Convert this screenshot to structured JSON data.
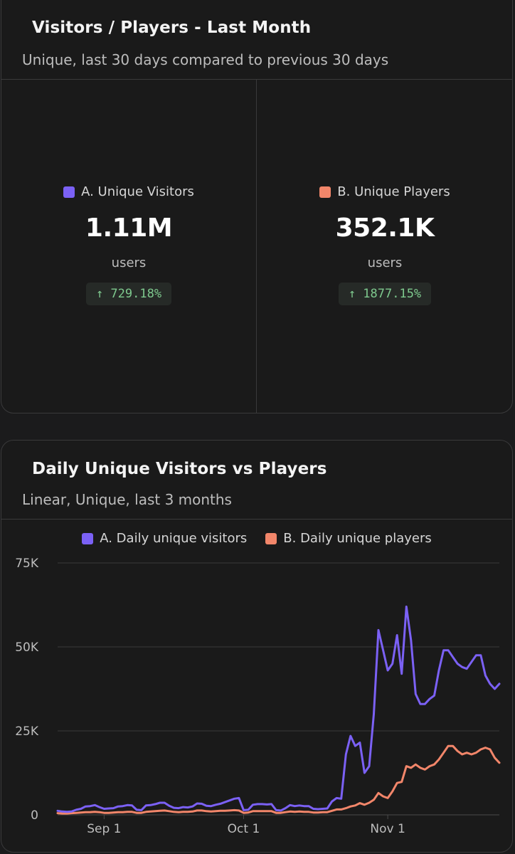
{
  "summary_card": {
    "title": "Visitors / Players - Last Month",
    "subtitle": "Unique, last 30 days compared to previous 30 days",
    "stats": [
      {
        "label": "A. Unique Visitors",
        "value": "1.11M",
        "unit": "users",
        "change": "↑ 729.18%",
        "color": "#7b61f5"
      },
      {
        "label": "B. Unique Players",
        "value": "352.1K",
        "unit": "users",
        "change": "↑ 1877.15%",
        "color": "#f2866a"
      }
    ],
    "change_color": "#7ec98e"
  },
  "chart_card": {
    "title": "Daily Unique Visitors vs Players",
    "subtitle": "Linear, Unique, last 3 months"
  },
  "chart_data": {
    "type": "line",
    "title": "Daily Unique Visitors vs Players",
    "subtitle": "Linear, Unique, last 3 months",
    "xlabel": "",
    "ylabel": "",
    "ylim": [
      0,
      75000
    ],
    "yticks": [
      0,
      25000,
      50000,
      75000
    ],
    "ytick_labels": [
      "0",
      "25K",
      "50K",
      "75K"
    ],
    "xlim_days": [
      0,
      95
    ],
    "xticks_days": [
      10,
      40,
      71
    ],
    "xtick_labels": [
      "Sep 1",
      "Oct 1",
      "Nov 1"
    ],
    "grid": true,
    "legend": "top-center",
    "series": [
      {
        "name": "A. Daily unique visitors",
        "color": "#7b61f5",
        "x": [
          0,
          1,
          2,
          3,
          4,
          5,
          6,
          7,
          8,
          9,
          10,
          11,
          12,
          13,
          14,
          15,
          16,
          17,
          18,
          19,
          20,
          21,
          22,
          23,
          24,
          25,
          26,
          27,
          28,
          29,
          30,
          31,
          32,
          33,
          34,
          35,
          36,
          37,
          38,
          39,
          40,
          41,
          42,
          43,
          44,
          45,
          46,
          47,
          48,
          49,
          50,
          51,
          52,
          53,
          54,
          55,
          56,
          57,
          58,
          59,
          60,
          61,
          62,
          63,
          64,
          65,
          66,
          67,
          68,
          69,
          70,
          71,
          72,
          73,
          74,
          75,
          76,
          77,
          78,
          79,
          80,
          81,
          82,
          83,
          84,
          85,
          86,
          87,
          88,
          89,
          90,
          91,
          92,
          93,
          94,
          95
        ],
        "values": [
          1200,
          1000,
          900,
          1000,
          1500,
          1800,
          2500,
          2600,
          2900,
          2300,
          1800,
          1900,
          2000,
          2500,
          2600,
          2900,
          2800,
          1500,
          1400,
          2800,
          2900,
          3200,
          3600,
          3600,
          2700,
          2100,
          2000,
          2300,
          2200,
          2500,
          3400,
          3300,
          2700,
          2600,
          3000,
          3300,
          3800,
          4300,
          4800,
          5000,
          1400,
          1500,
          3000,
          3200,
          3200,
          3100,
          3200,
          1400,
          1300,
          2000,
          2900,
          2600,
          2800,
          2600,
          2600,
          1800,
          1700,
          1800,
          1900,
          4000,
          5000,
          4800,
          18000,
          23500,
          20500,
          21500,
          12500,
          14500,
          30000,
          55000,
          49000,
          43000,
          45000,
          53500,
          42000,
          62000,
          52000,
          36000,
          33000,
          33000,
          34500,
          35500,
          43000,
          49000,
          49000,
          47000,
          45000,
          44000,
          43500,
          45500,
          47500,
          47500,
          41500,
          39000,
          37500,
          39000
        ]
      },
      {
        "name": "B. Daily unique players",
        "color": "#f2866a",
        "x": [
          0,
          1,
          2,
          3,
          4,
          5,
          6,
          7,
          8,
          9,
          10,
          11,
          12,
          13,
          14,
          15,
          16,
          17,
          18,
          19,
          20,
          21,
          22,
          23,
          24,
          25,
          26,
          27,
          28,
          29,
          30,
          31,
          32,
          33,
          34,
          35,
          36,
          37,
          38,
          39,
          40,
          41,
          42,
          43,
          44,
          45,
          46,
          47,
          48,
          49,
          50,
          51,
          52,
          53,
          54,
          55,
          56,
          57,
          58,
          59,
          60,
          61,
          62,
          63,
          64,
          65,
          66,
          67,
          68,
          69,
          70,
          71,
          72,
          73,
          74,
          75,
          76,
          77,
          78,
          79,
          80,
          81,
          82,
          83,
          84,
          85,
          86,
          87,
          88,
          89,
          90,
          91,
          92,
          93,
          94,
          95
        ],
        "values": [
          500,
          400,
          400,
          500,
          600,
          700,
          800,
          800,
          900,
          800,
          600,
          600,
          700,
          800,
          800,
          900,
          900,
          600,
          600,
          900,
          1000,
          1100,
          1200,
          1300,
          1100,
          900,
          800,
          900,
          900,
          1000,
          1300,
          1300,
          1100,
          1000,
          1100,
          1200,
          1200,
          1300,
          1400,
          1300,
          600,
          700,
          1100,
          1100,
          1100,
          1100,
          1100,
          600,
          600,
          800,
          1000,
          900,
          1000,
          900,
          900,
          700,
          700,
          800,
          800,
          1200,
          1600,
          1600,
          2000,
          2500,
          2800,
          3500,
          3000,
          3600,
          4500,
          6500,
          5500,
          5000,
          7000,
          9500,
          9800,
          14500,
          14000,
          15000,
          14000,
          13500,
          14500,
          15000,
          16500,
          18500,
          20500,
          20500,
          19000,
          18000,
          18500,
          18000,
          18500,
          19500,
          20000,
          19500,
          17000,
          15500
        ]
      }
    ]
  }
}
